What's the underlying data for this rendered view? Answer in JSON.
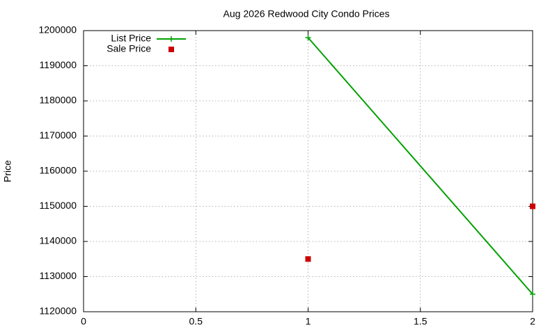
{
  "chart_data": {
    "type": "line",
    "title": "Aug 2026 Redwood City Condo Prices",
    "y_label": "Price",
    "x": [
      1,
      2
    ],
    "series": [
      {
        "name": "List Price",
        "color": "#00a000",
        "style": "linespoints",
        "values": [
          1198000,
          1125000
        ]
      },
      {
        "name": "Sale Price",
        "color": "#cc0000",
        "style": "points",
        "values": [
          1135000,
          1150000
        ]
      }
    ],
    "xlim": [
      0,
      2
    ],
    "xticks": [
      0,
      0.5,
      1,
      1.5,
      2
    ],
    "ylim": [
      1120000,
      1200000
    ],
    "yticks": [
      1120000,
      1130000,
      1140000,
      1150000,
      1160000,
      1170000,
      1180000,
      1190000,
      1200000
    ],
    "grid": true,
    "legend": "top-left"
  }
}
